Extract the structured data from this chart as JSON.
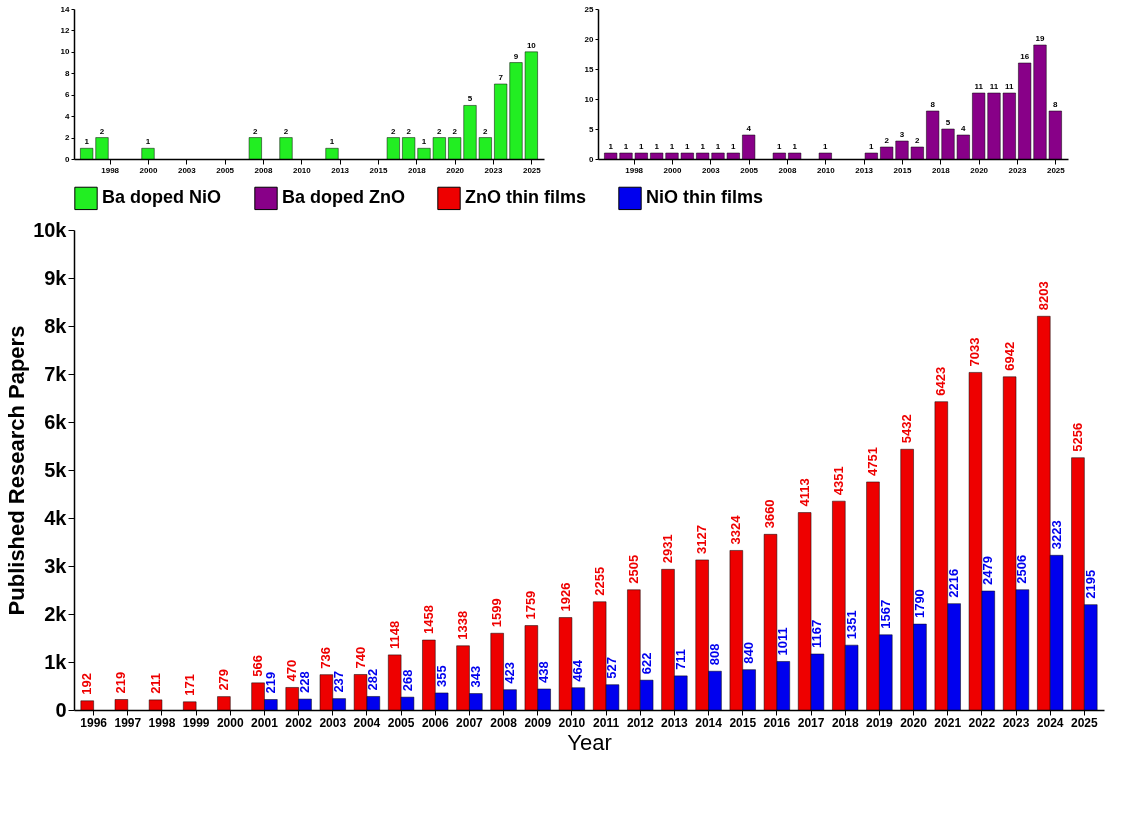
{
  "chart_data": [
    {
      "type": "bar",
      "x": [
        1996,
        1997,
        1998,
        1999,
        2000,
        2001,
        2002,
        2003,
        2004,
        2005,
        2006,
        2007,
        2008,
        2009,
        2010,
        2011,
        2012,
        2013,
        2014,
        2015,
        2016,
        2017,
        2018,
        2019,
        2020,
        2021,
        2022,
        2023,
        2024,
        2025
      ],
      "series": [
        {
          "name": "Ba doped NiO",
          "color": "#22ee22",
          "values": [
            1,
            2,
            null,
            null,
            1,
            null,
            null,
            null,
            null,
            null,
            null,
            2,
            null,
            2,
            null,
            null,
            1,
            null,
            null,
            null,
            2,
            2,
            1,
            2,
            2,
            5,
            2,
            7,
            9,
            10
          ]
        }
      ],
      "xlim": [
        1995.5,
        2025.5
      ],
      "xticks": [
        {
          "value": 1997.5,
          "label": "1998"
        },
        2000,
        {
          "value": 2002.5,
          "label": "2003"
        },
        2005,
        {
          "value": 2007.5,
          "label": "2008"
        },
        2010,
        {
          "value": 2012.5,
          "label": "2013"
        },
        2015,
        {
          "value": 2017.5,
          "label": "2018"
        },
        2020,
        {
          "value": 2022.5,
          "label": "2023"
        },
        2025
      ],
      "ylim": [
        0,
        14
      ],
      "yticks": [
        0,
        2,
        4,
        6,
        8,
        10,
        12,
        14
      ],
      "data_labels": true
    },
    {
      "type": "bar",
      "x": [
        1996,
        1997,
        1998,
        1999,
        2000,
        2001,
        2002,
        2003,
        2004,
        2005,
        2006,
        2007,
        2008,
        2009,
        2010,
        2011,
        2012,
        2013,
        2014,
        2015,
        2016,
        2017,
        2018,
        2019,
        2020,
        2021,
        2022,
        2023,
        2024,
        2025
      ],
      "series": [
        {
          "name": "Ba doped ZnO",
          "color": "#880088",
          "values": [
            1,
            1,
            1,
            1,
            1,
            1,
            1,
            1,
            1,
            4,
            null,
            1,
            1,
            null,
            1,
            null,
            null,
            1,
            2,
            3,
            2,
            8,
            5,
            4,
            11,
            11,
            11,
            16,
            19,
            8
          ]
        }
      ],
      "xlim": [
        1995.5,
        2025.5
      ],
      "xticks": [
        {
          "value": 1997.5,
          "label": "1998"
        },
        2000,
        {
          "value": 2002.5,
          "label": "2003"
        },
        2005,
        {
          "value": 2007.5,
          "label": "2008"
        },
        2010,
        {
          "value": 2012.5,
          "label": "2013"
        },
        2015,
        {
          "value": 2017.5,
          "label": "2018"
        },
        2020,
        {
          "value": 2022.5,
          "label": "2023"
        },
        2025
      ],
      "ylim": [
        0,
        25
      ],
      "yticks": [
        0,
        5,
        10,
        15,
        20,
        25
      ],
      "data_labels": true
    },
    {
      "type": "bar",
      "xlabel": "Year",
      "ylabel": "Published Research Papers",
      "categories": [
        "1996",
        "1997",
        "1998",
        "1999",
        "2000",
        "2001",
        "2002",
        "2003",
        "2004",
        "2005",
        "2006",
        "2007",
        "2008",
        "2009",
        "2010",
        "2011",
        "2012",
        "2013",
        "2014",
        "2015",
        "2016",
        "2017",
        "2018",
        "2019",
        "2020",
        "2021",
        "2022",
        "2023",
        "2024",
        "2025"
      ],
      "series": [
        {
          "name": "ZnO thin films",
          "color": "#ee0000",
          "values": [
            192,
            219,
            211,
            171,
            279,
            566,
            470,
            736,
            740,
            1148,
            1458,
            1338,
            1599,
            1759,
            1926,
            2255,
            2505,
            2931,
            3127,
            3324,
            3660,
            4113,
            4351,
            4751,
            5432,
            6423,
            7033,
            6942,
            8203,
            5256
          ]
        },
        {
          "name": "NiO thin films",
          "color": "#0000ee",
          "values": [
            null,
            null,
            null,
            null,
            null,
            219,
            228,
            237,
            282,
            268,
            355,
            343,
            423,
            438,
            464,
            527,
            622,
            711,
            808,
            840,
            1011,
            1167,
            1351,
            1567,
            1790,
            2216,
            2479,
            2506,
            3223,
            2195
          ]
        }
      ],
      "ylim": [
        0,
        10000
      ],
      "yticks": [
        0,
        {
          "value": 1000,
          "label": "1k"
        },
        {
          "value": 2000,
          "label": "2k"
        },
        {
          "value": 3000,
          "label": "3k"
        },
        {
          "value": 4000,
          "label": "4k"
        },
        {
          "value": 5000,
          "label": "5k"
        },
        {
          "value": 6000,
          "label": "6k"
        },
        {
          "value": 7000,
          "label": "7k"
        },
        {
          "value": 8000,
          "label": "8k"
        },
        {
          "value": 9000,
          "label": "9k"
        },
        {
          "value": 10000,
          "label": "10k"
        }
      ],
      "data_labels": true,
      "legend": "top"
    }
  ]
}
